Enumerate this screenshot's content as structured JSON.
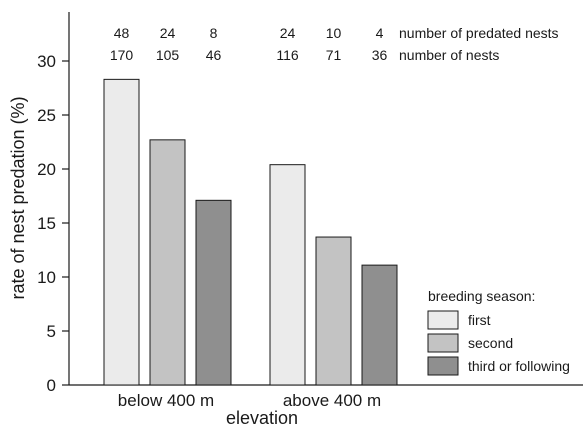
{
  "chart_data": {
    "type": "bar",
    "title": "",
    "xlabel": "elevation",
    "ylabel": "rate of nest predation (%)",
    "ylim": [
      0,
      35
    ],
    "yticks": [
      0,
      5,
      10,
      15,
      20,
      25,
      30
    ],
    "categories": [
      "below 400 m",
      "above 400 m"
    ],
    "series": [
      {
        "name": "first",
        "values": [
          28.3,
          20.4
        ],
        "color": "#ebebeb",
        "predated": [
          "48",
          "24"
        ],
        "nests": [
          "170",
          "116"
        ]
      },
      {
        "name": "second",
        "values": [
          22.7,
          13.7
        ],
        "color": "#c3c3c3",
        "predated": [
          "24",
          "10"
        ],
        "nests": [
          "105",
          "71"
        ]
      },
      {
        "name": "third or following",
        "values": [
          17.1,
          11.1
        ],
        "color": "#8f8f8f",
        "predated": [
          "8",
          "4"
        ],
        "nests": [
          "46",
          "36"
        ]
      }
    ],
    "row_labels": {
      "predated": "number of predated nests",
      "nests": "number of nests"
    },
    "legend": {
      "title": "breeding season:",
      "position": "bottom-right"
    }
  }
}
